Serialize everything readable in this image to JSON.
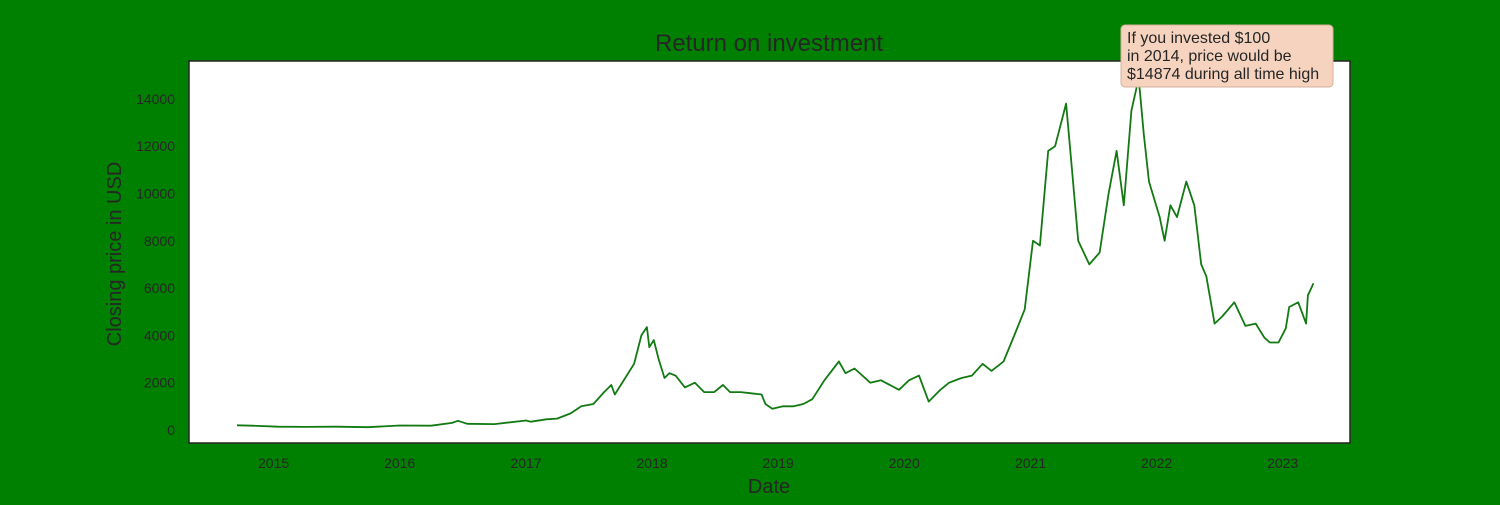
{
  "colors": {
    "page_background": "#008000",
    "plot_background": "#ffffff",
    "line": "#137a13",
    "annotation_background": "#f5d3bf",
    "annotation_border": "#d4b09c",
    "text": "#262626"
  },
  "chart_data": {
    "type": "line",
    "title": "Return on investment",
    "xlabel": "Date",
    "ylabel": "Closing price in USD",
    "grid": false,
    "legend": "none",
    "xlim": [
      "2014-05-01",
      "2023-07-15"
    ],
    "ylim": [
      -550,
      15600
    ],
    "x_ticks": [
      {
        "date": "2015-01-01",
        "label": "2015"
      },
      {
        "date": "2016-01-01",
        "label": "2016"
      },
      {
        "date": "2017-01-01",
        "label": "2017"
      },
      {
        "date": "2018-01-01",
        "label": "2018"
      },
      {
        "date": "2019-01-01",
        "label": "2019"
      },
      {
        "date": "2020-01-01",
        "label": "2020"
      },
      {
        "date": "2021-01-01",
        "label": "2021"
      },
      {
        "date": "2022-01-01",
        "label": "2022"
      },
      {
        "date": "2023-01-01",
        "label": "2023"
      }
    ],
    "y_ticks": [
      0,
      2000,
      4000,
      6000,
      8000,
      10000,
      12000,
      14000
    ],
    "annotation": {
      "lines": [
        "If you invested $100",
        "in 2014, price would be",
        "$14874 during all time high"
      ],
      "location": "top-right, beside the all time high"
    },
    "series": [
      {
        "color": "#137a13",
        "x": [
          "2014-09-17",
          "2014-11-01",
          "2015-01-15",
          "2015-04-01",
          "2015-07-01",
          "2015-10-01",
          "2016-01-01",
          "2016-04-01",
          "2016-06-01",
          "2016-06-18",
          "2016-07-15",
          "2016-10-01",
          "2017-01-01",
          "2017-01-15",
          "2017-03-01",
          "2017-04-01",
          "2017-05-10",
          "2017-06-10",
          "2017-07-15",
          "2017-08-15",
          "2017-09-05",
          "2017-09-15",
          "2017-10-15",
          "2017-11-10",
          "2017-12-01",
          "2017-12-10",
          "2017-12-17",
          "2017-12-24",
          "2018-01-06",
          "2018-01-20",
          "2018-02-06",
          "2018-02-20",
          "2018-03-10",
          "2018-04-06",
          "2018-05-05",
          "2018-06-01",
          "2018-06-30",
          "2018-07-25",
          "2018-08-15",
          "2018-09-15",
          "2018-10-15",
          "2018-11-14",
          "2018-11-25",
          "2018-12-15",
          "2019-01-15",
          "2019-02-15",
          "2019-03-15",
          "2019-04-10",
          "2019-05-15",
          "2019-06-26",
          "2019-07-15",
          "2019-08-10",
          "2019-09-25",
          "2019-10-26",
          "2019-12-17",
          "2020-01-15",
          "2020-02-13",
          "2020-03-12",
          "2020-04-15",
          "2020-05-10",
          "2020-06-15",
          "2020-07-15",
          "2020-08-15",
          "2020-09-10",
          "2020-10-15",
          "2020-11-15",
          "2020-12-15",
          "2021-01-08",
          "2021-01-28",
          "2021-02-21",
          "2021-03-13",
          "2021-04-14",
          "2021-05-01",
          "2021-05-19",
          "2021-06-20",
          "2021-07-20",
          "2021-08-15",
          "2021-09-07",
          "2021-09-28",
          "2021-10-20",
          "2021-11-10",
          "2021-11-25",
          "2021-12-10",
          "2022-01-10",
          "2022-01-24",
          "2022-02-10",
          "2022-03-01",
          "2022-03-28",
          "2022-04-20",
          "2022-05-10",
          "2022-05-25",
          "2022-06-18",
          "2022-07-10",
          "2022-08-14",
          "2022-09-15",
          "2022-10-15",
          "2022-11-09",
          "2022-11-25",
          "2022-12-20",
          "2023-01-10",
          "2023-01-20",
          "2023-02-15",
          "2023-03-10",
          "2023-03-15",
          "2023-03-25",
          "2023-03-31"
        ],
        "y": [
          200,
          180,
          140,
          130,
          140,
          120,
          190,
          180,
          300,
          390,
          260,
          250,
          400,
          350,
          450,
          480,
          700,
          1000,
          1100,
          1600,
          1900,
          1500,
          2200,
          2800,
          4000,
          4200,
          4350,
          3500,
          3800,
          3000,
          2200,
          2400,
          2300,
          1800,
          2000,
          1600,
          1600,
          1900,
          1600,
          1600,
          1550,
          1500,
          1100,
          900,
          1000,
          1000,
          1100,
          1300,
          2100,
          2900,
          2400,
          2600,
          2000,
          2100,
          1700,
          2100,
          2300,
          1200,
          1700,
          2000,
          2200,
          2300,
          2800,
          2500,
          2900,
          4000,
          5100,
          8000,
          7800,
          11800,
          12000,
          13800,
          11000,
          8000,
          7000,
          7500,
          10000,
          11800,
          9500,
          13500,
          14874,
          12500,
          10500,
          9000,
          8000,
          9500,
          9000,
          10500,
          9500,
          7000,
          6500,
          4500,
          4800,
          5400,
          4400,
          4500,
          3900,
          3700,
          3700,
          4300,
          5200,
          5400,
          4500,
          5700,
          6000,
          6200
        ]
      }
    ]
  }
}
